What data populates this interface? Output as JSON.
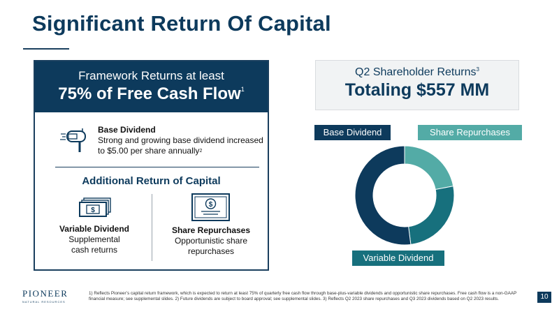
{
  "title": "Significant Return Of Capital",
  "framework": {
    "line1": "Framework Returns at least",
    "line2": "75% of Free Cash Flow",
    "line2_sup": "1",
    "base_dividend_title": "Base Dividend",
    "base_dividend_text": "Strong and growing base dividend increased to $5.00 per share annually",
    "base_dividend_sup": "2",
    "additional_title": "Additional Return of Capital",
    "variable_title": "Variable Dividend",
    "variable_text": "Supplemental cash returns",
    "share_title": "Share Repurchases",
    "share_text": "Opportunistic share repurchases"
  },
  "shareholder": {
    "line1": "Q2 Shareholder Returns",
    "line1_sup": "3",
    "line2": "Totaling $557 MM"
  },
  "chart_data": {
    "type": "pie",
    "title": "",
    "categories": [
      "Share Repurchases",
      "Variable Dividend",
      "Base Dividend"
    ],
    "values": [
      22,
      26,
      52
    ],
    "colors": [
      "#53aba6",
      "#17707d",
      "#0d3a5c"
    ],
    "donut": true
  },
  "callouts": {
    "base": "Base Dividend",
    "share": "Share Repurchases",
    "variable": "Variable Dividend"
  },
  "logo": {
    "top": "PIONEER",
    "bottom": "NATURAL RESOURCES"
  },
  "footnote": "1) Reflects Pioneer’s capital return framework, which is expected to return at least 75% of quarterly free cash flow through base-plus-variable dividends and opportunistic share repurchases. Free cash flow is a non-GAAP financial measure; see supplemental slides.  2) Future dividends are subject to board approval; see supplemental slides.  3) Reflects Q2 2023 share repurchases and Q3 2023 dividends based on Q2 2023 results.",
  "page_number": "10",
  "colors": {
    "navy": "#0d3a5c",
    "teal_light": "#53aba6",
    "teal_dark": "#17707d"
  }
}
